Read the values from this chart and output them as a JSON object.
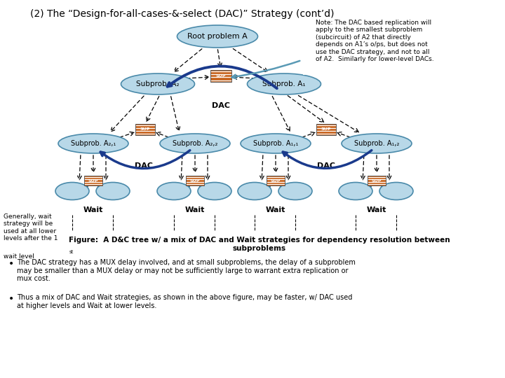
{
  "title": "(2) The “Design-for-all-cases-&-select (DAC)” Strategy (cont’d)",
  "bg_color": "#ffffff",
  "ellipse_color": "#b8d8e8",
  "ellipse_edge": "#4a8aaa",
  "sup_box_color": "#c8641e",
  "dac_arrow_color": "#1a3a8c",
  "note_arrow_color": "#5a9ab5",
  "note_text": "Note: The DAC based replication will\napply to the smallest subproblem\n(subcircuit) of A2 that directly\ndepends on A1’s o/ps, but does not\nuse the DAC strategy, and not to all\nof A2.  Similarly for lower-level DACs.",
  "figure_caption": "Figure:  A D&C tree w/ a mix of DAC and Wait strategies for dependency resolution between\nsubproblems",
  "bullet1": "The DAC strategy has a MUX delay involved, and at small subproblems, the delay of a subproblem\nmay be smaller than a MUX delay or may not be sufficiently large to warrant extra replication or\nmux cost.",
  "bullet2": "Thus a mix of DAC and Wait strategies, as shown in the above figure, may be faster, w/ DAC used\nat higher levels and Wait at lower levels.",
  "generally_text": "Generally, wait\nstrategy will be\nused at all lower\nlevels after the 1",
  "generally_text2": "st",
  "generally_text3": "\nwait level"
}
